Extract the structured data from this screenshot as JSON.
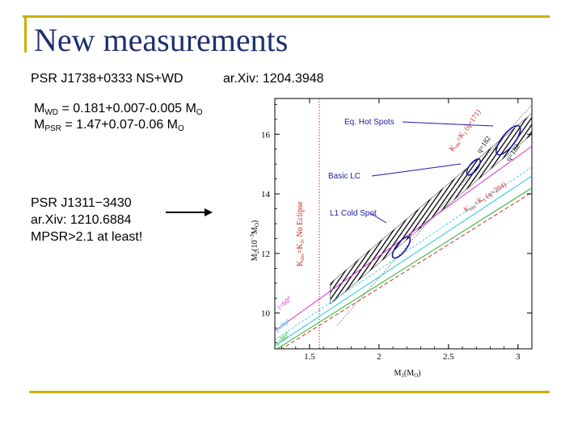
{
  "slide": {
    "title": "New measurements",
    "pulsar1": {
      "name_line": "PSR J1738+0333 NS+WD",
      "arxiv": "ar.Xiv: 1204.3948",
      "mwd_prefix": "M",
      "mwd_sub": "WD",
      "mwd_value": " = 0.181+0.007-0.005 M",
      "mwd_unit_sub": "O",
      "mpsr_prefix": "M",
      "mpsr_sub": "PSR",
      "mpsr_value": " = 1.47+0.07-0.06 M",
      "mpsr_unit_sub": "O"
    },
    "pulsar2": {
      "name": "PSR J1311−3430",
      "arxiv": "ar.Xiv: 1210.6884",
      "note": "MPSR>2.1 at least!"
    }
  },
  "chart_data": {
    "type": "line",
    "xlabel_main": "M",
    "xlabel_sub": "1",
    "xlabel_unit": "(M",
    "xlabel_unit_sub": "O",
    "xlabel_close": ")",
    "ylabel_main": "M",
    "ylabel_sub": "2",
    "ylabel_unit": "(10",
    "ylabel_exp": "−3",
    "ylabel_unit2": "M",
    "ylabel_unit_sub": "O",
    "ylabel_close": ")",
    "xlim": [
      1.25,
      3.1
    ],
    "ylim": [
      8.8,
      17.2
    ],
    "x_ticks": [
      1.5,
      2,
      2.5,
      3
    ],
    "x_tick_labels": [
      "1.5",
      "2",
      "2.5",
      "3"
    ],
    "y_ticks": [
      10,
      12,
      14,
      16
    ],
    "y_tick_labels": [
      "10",
      "12",
      "14",
      "16"
    ],
    "colors": {
      "magenta": "#d633d6",
      "cyan": "#22c7e0",
      "green": "#22b022",
      "red_dashed": "#cc3333",
      "ellipse": "#1a1aa8",
      "hatch": "#000000",
      "dotted_red": "#cc2222",
      "label_blue": "#1a1aa8",
      "label_red": "#cc2222"
    },
    "series": [
      {
        "name": "i=60°",
        "x": [
          1.25,
          3.1
        ],
        "y": [
          9.4,
          15.6
        ]
      },
      {
        "name": "i=76°",
        "x": [
          1.25,
          3.1
        ],
        "y": [
          8.9,
          14.6
        ]
      },
      {
        "name": "i=80°",
        "x": [
          1.25,
          3.1
        ],
        "y": [
          8.75,
          14.2
        ]
      }
    ],
    "red_dashed": {
      "x": [
        1.25,
        3.1
      ],
      "y": [
        8.65,
        14.05
      ]
    },
    "dotted_vertical_x": 1.57,
    "hatched_band": {
      "x": [
        1.65,
        3.1
      ],
      "y_low": [
        10.3,
        16.0
      ],
      "y_high": [
        11.0,
        16.7
      ]
    },
    "ellipses": [
      {
        "name": "Eq. Hot Spots",
        "x": 2.93,
        "y": 15.8
      },
      {
        "name": "Basic LC",
        "x": 2.68,
        "y": 14.9
      },
      {
        "name": "L1 Cold Spot",
        "x": 2.16,
        "y": 12.2
      }
    ],
    "annotations": {
      "eq_hot_spots": "Eq. Hot Spots",
      "basic_lc": "Basic LC",
      "l1_cold_spot": "L1 Cold Spot",
      "kobs_k2_no_eclipse": "K",
      "kobs_k2_no_eclipse_sub": "obs",
      "kobs_k2_no_eclipse_rest": "=K",
      "kobs_k2_no_eclipse_sub2": "2",
      "kobs_k2_no_eclipse_tail": ", No Eclipse",
      "kobs_q171_pre": "K",
      "kobs_q171_sub": "obs",
      "kobs_q171_mid": "=K",
      "kobs_q171_sub2": "2",
      "kobs_q171_tail": " (q=171)",
      "q182": "q=182",
      "q182b": "q=182",
      "kobs_q204_pre": "K",
      "kobs_q204_sub": "obs",
      "kobs_q204_mid": "=K",
      "kobs_q204_sub2": "1",
      "kobs_q204_tail": " (q=204)",
      "i60": "i=60°",
      "i76": "i=76°",
      "i80": "i=80°"
    }
  }
}
